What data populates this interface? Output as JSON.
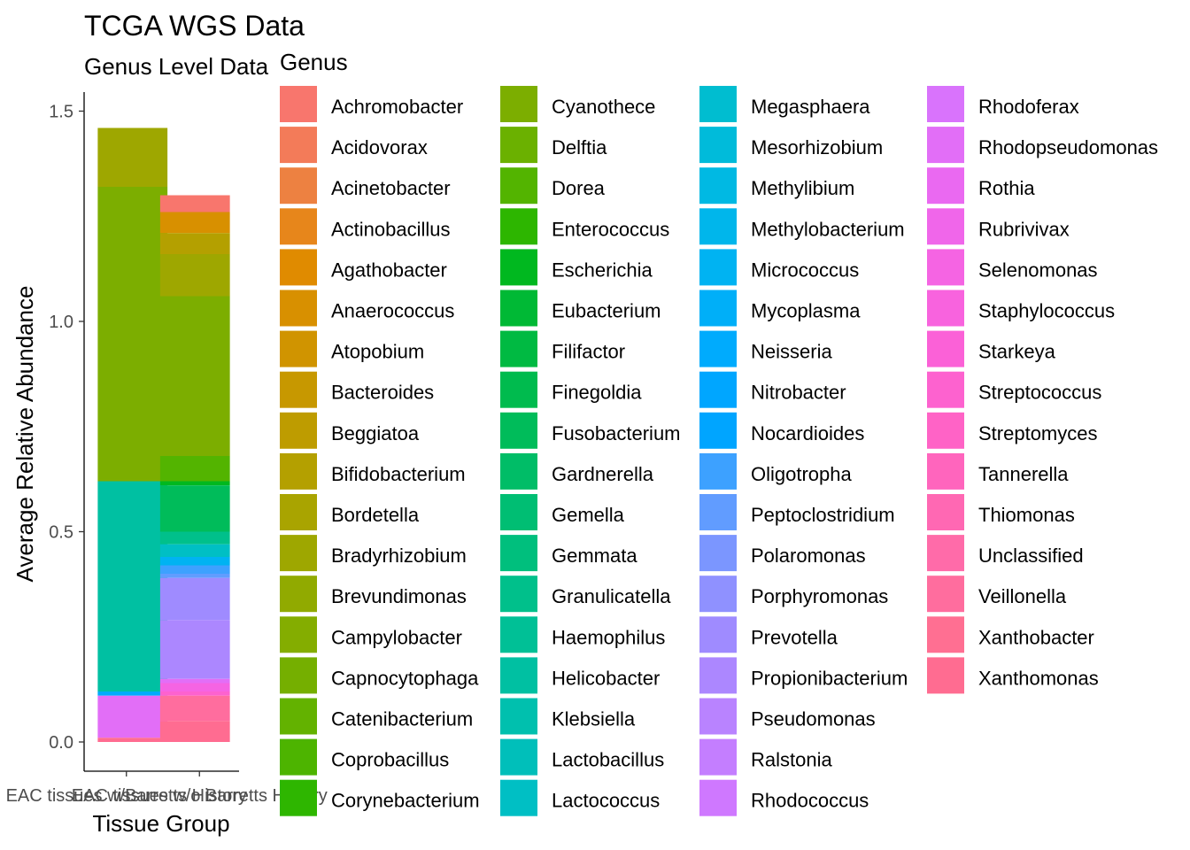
{
  "chart_data": {
    "type": "bar",
    "stacked": true,
    "title": "TCGA WGS Data",
    "subtitle": "Genus Level Data",
    "xlabel": "Tissue Group",
    "ylabel": "Average Relative Abundance",
    "ylim": [
      0,
      1.55
    ],
    "yticks": [
      "0.0",
      "0.5",
      "1.0",
      "1.5"
    ],
    "categories": [
      "EAC tissues w/Barretts History",
      "EAC tissues w/o Barretts History"
    ],
    "legend_title": "Genus",
    "legend_position": "right",
    "grid": false,
    "series": [
      {
        "name": "Achromobacter",
        "color": "#F8766D",
        "values": [
          0.0,
          0.04
        ]
      },
      {
        "name": "Acidovorax",
        "color": "#F37B59",
        "values": [
          0.0,
          0.0
        ]
      },
      {
        "name": "Acinetobacter",
        "color": "#ED8141",
        "values": [
          0.0,
          0.0
        ]
      },
      {
        "name": "Actinobacillus",
        "color": "#E7861B",
        "values": [
          0.0,
          0.0
        ]
      },
      {
        "name": "Agathobacter",
        "color": "#E08B00",
        "values": [
          0.0,
          0.0
        ]
      },
      {
        "name": "Anaerococcus",
        "color": "#D89000",
        "values": [
          0.0,
          0.05
        ]
      },
      {
        "name": "Atopobium",
        "color": "#D09400",
        "values": [
          0.0,
          0.0
        ]
      },
      {
        "name": "Bacteroides",
        "color": "#C79800",
        "values": [
          0.0,
          0.0
        ]
      },
      {
        "name": "Beggiatoa",
        "color": "#BE9C00",
        "values": [
          0.0,
          0.0
        ]
      },
      {
        "name": "Bifidobacterium",
        "color": "#B4A000",
        "values": [
          0.0,
          0.05
        ]
      },
      {
        "name": "Bordetella",
        "color": "#A9A400",
        "values": [
          0.0,
          0.0
        ]
      },
      {
        "name": "Bradyrhizobium",
        "color": "#9EA700",
        "values": [
          0.14,
          0.1
        ]
      },
      {
        "name": "Brevundimonas",
        "color": "#91AA00",
        "values": [
          0.0,
          0.0
        ]
      },
      {
        "name": "Campylobacter",
        "color": "#84AD00",
        "values": [
          0.0,
          0.0
        ]
      },
      {
        "name": "Capnocytophaga",
        "color": "#75AF00",
        "values": [
          0.0,
          0.0
        ]
      },
      {
        "name": "Catenibacterium",
        "color": "#63B200",
        "values": [
          0.0,
          0.0
        ]
      },
      {
        "name": "Coprobacillus",
        "color": "#4DB400",
        "values": [
          0.0,
          0.0
        ]
      },
      {
        "name": "Corynebacterium",
        "color": "#2EB600",
        "values": [
          0.0,
          0.0
        ]
      },
      {
        "name": "Cyanothece",
        "color": "#7CAE00",
        "values": [
          0.7,
          0.38
        ]
      },
      {
        "name": "Delftia",
        "color": "#6BB100",
        "values": [
          0.0,
          0.0
        ]
      },
      {
        "name": "Dorea",
        "color": "#53B400",
        "values": [
          0.0,
          0.06
        ]
      },
      {
        "name": "Enterococcus",
        "color": "#2DB600",
        "values": [
          0.0,
          0.0
        ]
      },
      {
        "name": "Escherichia",
        "color": "#00B81F",
        "values": [
          0.0,
          0.01
        ]
      },
      {
        "name": "Eubacterium",
        "color": "#00B935",
        "values": [
          0.0,
          0.0
        ]
      },
      {
        "name": "Filifactor",
        "color": "#00BA42",
        "values": [
          0.0,
          0.0
        ]
      },
      {
        "name": "Finegoldia",
        "color": "#00BB4E",
        "values": [
          0.0,
          0.0
        ]
      },
      {
        "name": "Fusobacterium",
        "color": "#00BC5A",
        "values": [
          0.0,
          0.11
        ]
      },
      {
        "name": "Gardnerella",
        "color": "#00BD67",
        "values": [
          0.0,
          0.0
        ]
      },
      {
        "name": "Gemella",
        "color": "#00BE73",
        "values": [
          0.0,
          0.0
        ]
      },
      {
        "name": "Gemmata",
        "color": "#00BF7D",
        "values": [
          0.0,
          0.0
        ]
      },
      {
        "name": "Granulicatella",
        "color": "#00C08B",
        "values": [
          0.0,
          0.03
        ]
      },
      {
        "name": "Haemophilus",
        "color": "#00C096",
        "values": [
          0.0,
          0.0
        ]
      },
      {
        "name": "Helicobacter",
        "color": "#00C0A2",
        "values": [
          0.5,
          0.0
        ]
      },
      {
        "name": "Klebsiella",
        "color": "#00C0AE",
        "values": [
          0.0,
          0.0
        ]
      },
      {
        "name": "Lactobacillus",
        "color": "#00BFBA",
        "values": [
          0.0,
          0.0
        ]
      },
      {
        "name": "Lactococcus",
        "color": "#00BFC4",
        "values": [
          0.0,
          0.03
        ]
      },
      {
        "name": "Megasphaera",
        "color": "#00BDD0",
        "values": [
          0.0,
          0.0
        ]
      },
      {
        "name": "Mesorhizobium",
        "color": "#00BBDA",
        "values": [
          0.0,
          0.0
        ]
      },
      {
        "name": "Methylibium",
        "color": "#00B9E3",
        "values": [
          0.0,
          0.0
        ]
      },
      {
        "name": "Methylobacterium",
        "color": "#00B6EB",
        "values": [
          0.0,
          0.0
        ]
      },
      {
        "name": "Micrococcus",
        "color": "#00B3F2",
        "values": [
          0.0,
          0.02
        ]
      },
      {
        "name": "Mycoplasma",
        "color": "#00AFF8",
        "values": [
          0.0,
          0.0
        ]
      },
      {
        "name": "Neisseria",
        "color": "#00ABFD",
        "values": [
          0.01,
          0.0
        ]
      },
      {
        "name": "Nitrobacter",
        "color": "#00A6FF",
        "values": [
          0.0,
          0.0
        ]
      },
      {
        "name": "Nocardioides",
        "color": "#00A5FF",
        "values": [
          0.0,
          0.0
        ]
      },
      {
        "name": "Oligotropha",
        "color": "#3DA1FF",
        "values": [
          0.0,
          0.02
        ]
      },
      {
        "name": "Peptoclostridium",
        "color": "#619CFF",
        "values": [
          0.0,
          0.01
        ]
      },
      {
        "name": "Polaromonas",
        "color": "#7B96FF",
        "values": [
          0.0,
          0.0
        ]
      },
      {
        "name": "Porphyromonas",
        "color": "#8F91FF",
        "values": [
          0.0,
          0.0
        ]
      },
      {
        "name": "Prevotella",
        "color": "#9F8BFF",
        "values": [
          0.0,
          0.1
        ]
      },
      {
        "name": "Propionibacterium",
        "color": "#AC87FF",
        "values": [
          0.0,
          0.14
        ]
      },
      {
        "name": "Pseudomonas",
        "color": "#B983FF",
        "values": [
          0.0,
          0.0
        ]
      },
      {
        "name": "Ralstonia",
        "color": "#C47EFF",
        "values": [
          0.0,
          0.0
        ]
      },
      {
        "name": "Rhodococcus",
        "color": "#CF78FF",
        "values": [
          0.0,
          0.0
        ]
      },
      {
        "name": "Rhodoferax",
        "color": "#D973FC",
        "values": [
          0.0,
          0.0
        ]
      },
      {
        "name": "Rhodopseudomonas",
        "color": "#E26EF7",
        "values": [
          0.1,
          0.01
        ]
      },
      {
        "name": "Rothia",
        "color": "#EA69F1",
        "values": [
          0.0,
          0.0
        ]
      },
      {
        "name": "Rubrivivax",
        "color": "#F066EA",
        "values": [
          0.0,
          0.0
        ]
      },
      {
        "name": "Selenomonas",
        "color": "#F564E3",
        "values": [
          0.0,
          0.02
        ]
      },
      {
        "name": "Staphylococcus",
        "color": "#F863DE",
        "values": [
          0.0,
          0.0
        ]
      },
      {
        "name": "Starkeya",
        "color": "#FB61D7",
        "values": [
          0.0,
          0.0
        ]
      },
      {
        "name": "Streptococcus",
        "color": "#FD62CF",
        "values": [
          0.0,
          0.01
        ]
      },
      {
        "name": "Streptomyces",
        "color": "#FF63C6",
        "values": [
          0.0,
          0.0
        ]
      },
      {
        "name": "Tannerella",
        "color": "#FF65BD",
        "values": [
          0.0,
          0.0
        ]
      },
      {
        "name": "Thiomonas",
        "color": "#FF68B3",
        "values": [
          0.0,
          0.0
        ]
      },
      {
        "name": "Unclassified",
        "color": "#FF6BA9",
        "values": [
          0.0,
          0.0
        ]
      },
      {
        "name": "Veillonella",
        "color": "#FF6D9E",
        "values": [
          0.0,
          0.06
        ]
      },
      {
        "name": "Xanthobacter",
        "color": "#FF6F92",
        "values": [
          0.0,
          0.0
        ]
      },
      {
        "name": "Xanthomonas",
        "color": "#FF6C91",
        "values": [
          0.01,
          0.05
        ]
      }
    ]
  }
}
